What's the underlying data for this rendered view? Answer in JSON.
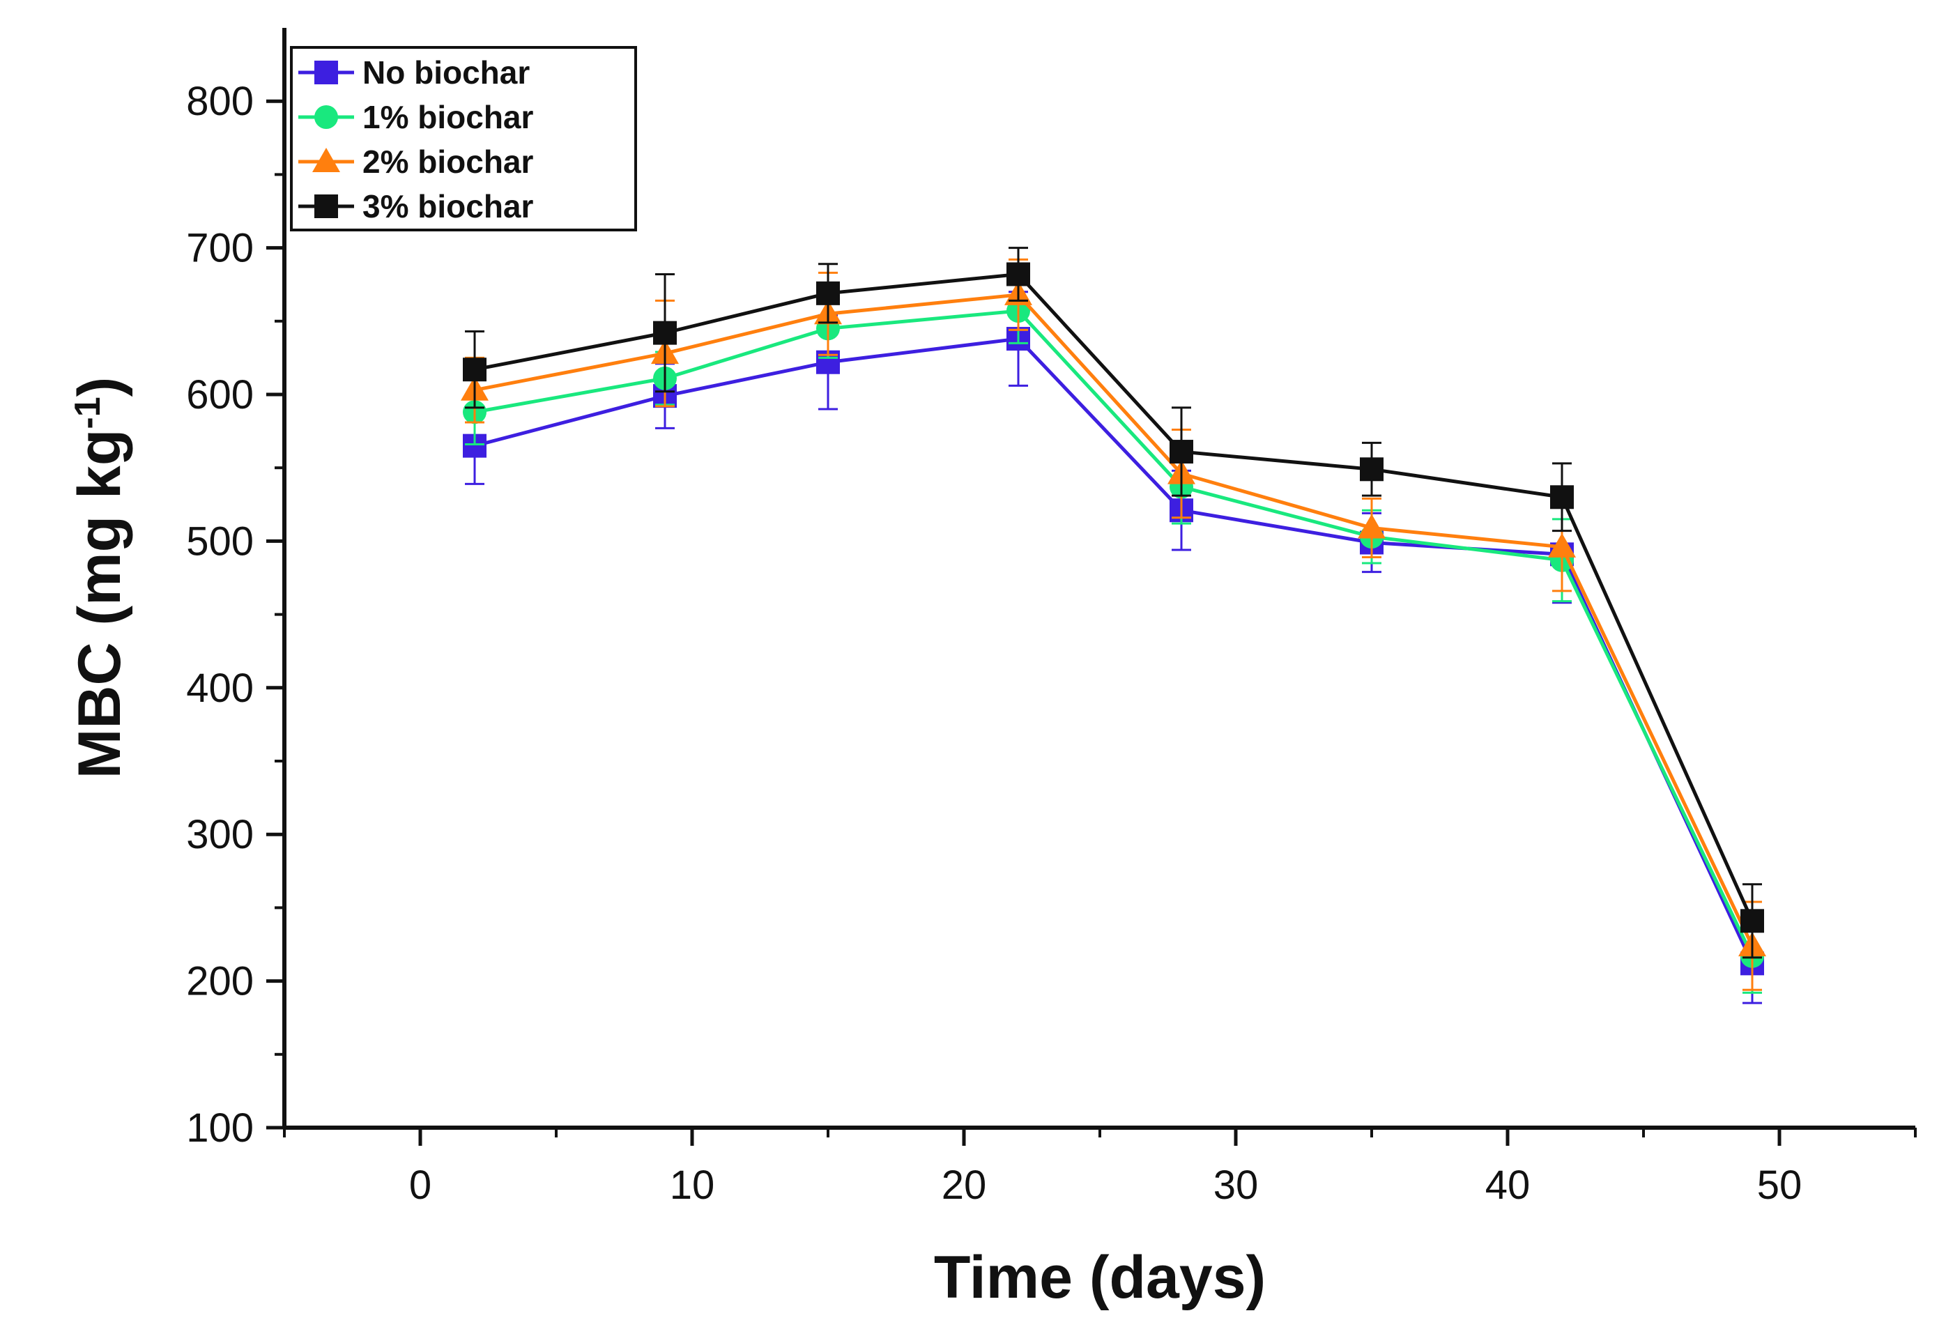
{
  "chart_data": {
    "type": "line",
    "title": "",
    "xlabel": "Time (days)",
    "ylabel": "MBC (mg kg",
    "ylabel_sup": "-1",
    "ylabel_end": ")",
    "xlim": [
      -5,
      55
    ],
    "ylim": [
      100,
      850
    ],
    "xticks": [
      0,
      10,
      20,
      30,
      40,
      50
    ],
    "yticks": [
      100,
      200,
      300,
      400,
      500,
      600,
      700,
      800
    ],
    "legend_position": "top-left",
    "x": [
      2,
      9,
      15,
      22,
      28,
      35,
      42,
      49
    ],
    "series": [
      {
        "name": "No biochar",
        "color": "#3d1fe0",
        "marker": "square",
        "values": [
          565,
          599,
          622,
          638,
          521,
          499,
          491,
          212
        ],
        "errors": [
          26,
          22,
          32,
          32,
          27,
          20,
          33,
          27
        ]
      },
      {
        "name": "1% biochar",
        "color": "#19e87e",
        "marker": "circle",
        "values": [
          588,
          611,
          645,
          657,
          537,
          503,
          487,
          217
        ],
        "errors": [
          22,
          18,
          20,
          22,
          25,
          18,
          28,
          25
        ]
      },
      {
        "name": "2% biochar",
        "color": "#ff7f0e",
        "marker": "triangle",
        "values": [
          603,
          628,
          655,
          668,
          546,
          509,
          496,
          224
        ],
        "errors": [
          22,
          36,
          28,
          24,
          30,
          20,
          30,
          30
        ]
      },
      {
        "name": "3% biochar",
        "color": "#111111",
        "marker": "square",
        "values": [
          617,
          642,
          669,
          682,
          561,
          549,
          530,
          241
        ],
        "errors": [
          26,
          40,
          20,
          18,
          30,
          18,
          23,
          25
        ]
      }
    ]
  }
}
